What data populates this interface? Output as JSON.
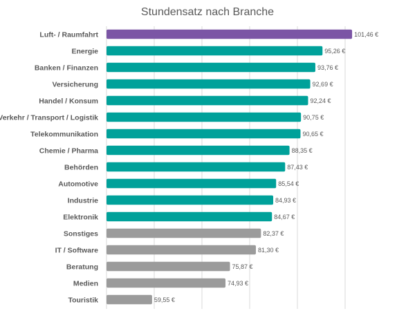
{
  "chart_data": {
    "type": "bar",
    "orientation": "horizontal",
    "title": "Stundensatz nach Branche",
    "xlabel": "",
    "ylabel": "",
    "xlim": [
      50,
      105
    ],
    "grid": "vertical",
    "legend": "none",
    "categories": [
      "Luft- / Raumfahrt",
      "Energie",
      "Banken / Finanzen",
      "Versicherung",
      "Handel / Konsum",
      "Verkehr / Transport / Logistik",
      "Telekommunikation",
      "Chemie / Pharma",
      "Behörden",
      "Automotive",
      "Industrie",
      "Elektronik",
      "Sonstiges",
      "IT / Software",
      "Beratung",
      "Medien",
      "Touristik"
    ],
    "values": [
      101.46,
      95.26,
      93.76,
      92.69,
      92.24,
      90.75,
      90.65,
      88.35,
      87.43,
      85.54,
      84.93,
      84.67,
      82.37,
      81.3,
      75.87,
      74.93,
      59.55
    ],
    "value_labels": [
      "101,46 €",
      "95,26 €",
      "93,76 €",
      "92,69 €",
      "92,24 €",
      "90,75 €",
      "90,65 €",
      "88,35 €",
      "87,43 €",
      "85,54 €",
      "84,93 €",
      "84,67 €",
      "82,37 €",
      "81,30 €",
      "75,87 €",
      "74,93 €",
      "59,55 €"
    ],
    "bar_colors": [
      "#7b55a5",
      "#00a19a",
      "#00a19a",
      "#00a19a",
      "#00a19a",
      "#00a19a",
      "#00a19a",
      "#00a19a",
      "#00a19a",
      "#00a19a",
      "#00a19a",
      "#00a19a",
      "#9b9b9b",
      "#9b9b9b",
      "#9b9b9b",
      "#9b9b9b",
      "#9b9b9b"
    ]
  }
}
